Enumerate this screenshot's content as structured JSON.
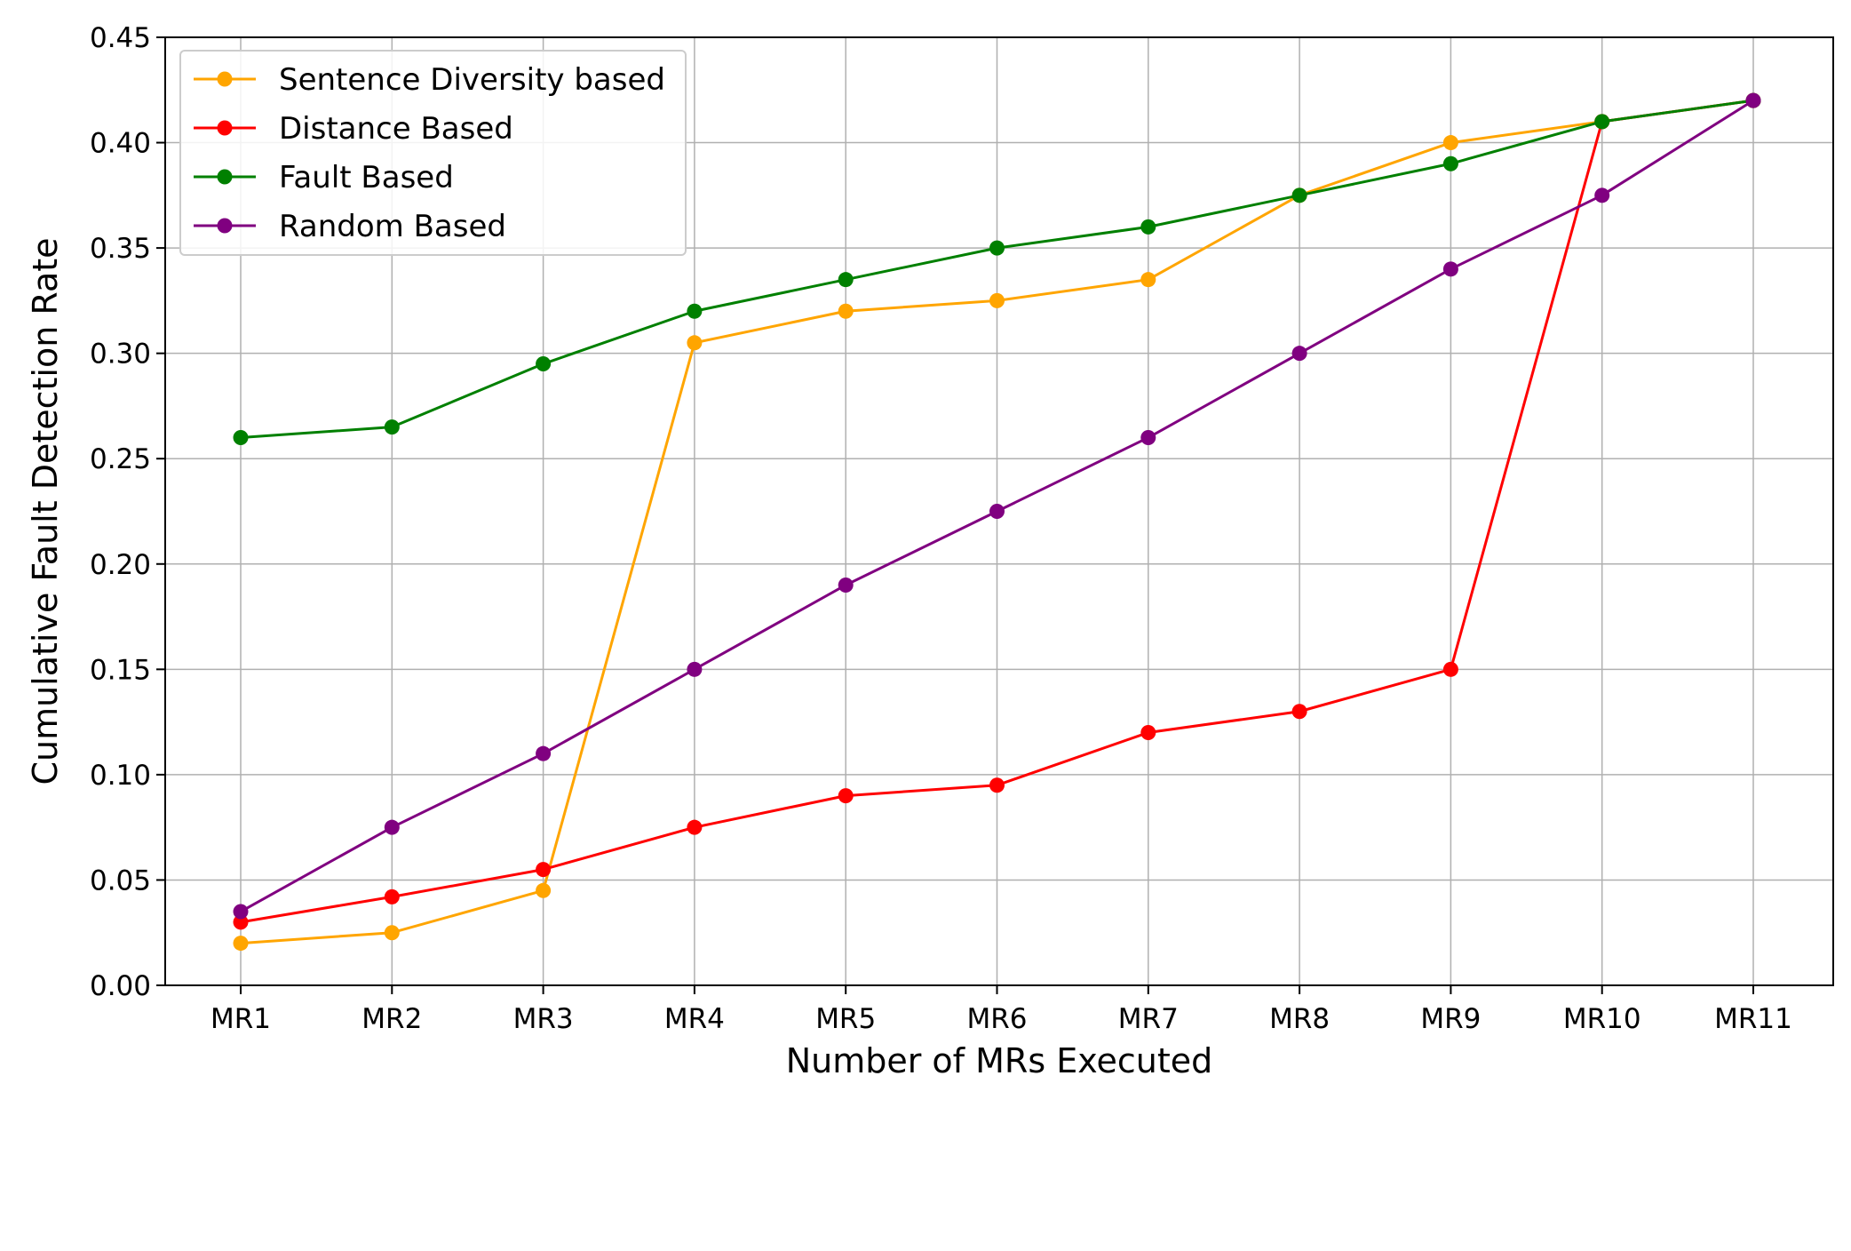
{
  "chart_data": {
    "type": "line",
    "title": "",
    "xlabel": "Number of MRs Executed",
    "ylabel": "Cumulative Fault Detection Rate",
    "categories": [
      "MR1",
      "MR2",
      "MR3",
      "MR4",
      "MR5",
      "MR6",
      "MR7",
      "MR8",
      "MR9",
      "MR10",
      "MR11"
    ],
    "ylim": [
      0,
      0.45
    ],
    "yticks": [
      "0.00",
      "0.05",
      "0.10",
      "0.15",
      "0.20",
      "0.25",
      "0.30",
      "0.35",
      "0.40",
      "0.45"
    ],
    "grid": true,
    "legend_position": "top-left",
    "series": [
      {
        "name": "Sentence Diversity based",
        "color": "#ffa500",
        "values": [
          0.02,
          0.025,
          0.045,
          0.305,
          0.32,
          0.325,
          0.335,
          0.375,
          0.4,
          0.41,
          0.42
        ]
      },
      {
        "name": "Distance Based",
        "color": "#ff0000",
        "values": [
          0.03,
          0.042,
          0.055,
          0.075,
          0.09,
          0.095,
          0.12,
          0.13,
          0.15,
          0.41,
          0.42
        ]
      },
      {
        "name": "Fault Based",
        "color": "#008000",
        "values": [
          0.26,
          0.265,
          0.295,
          0.32,
          0.335,
          0.35,
          0.36,
          0.375,
          0.39,
          0.41,
          0.42
        ]
      },
      {
        "name": "Random Based",
        "color": "#800080",
        "values": [
          0.035,
          0.075,
          0.11,
          0.15,
          0.19,
          0.225,
          0.26,
          0.3,
          0.34,
          0.375,
          0.42
        ]
      }
    ]
  }
}
